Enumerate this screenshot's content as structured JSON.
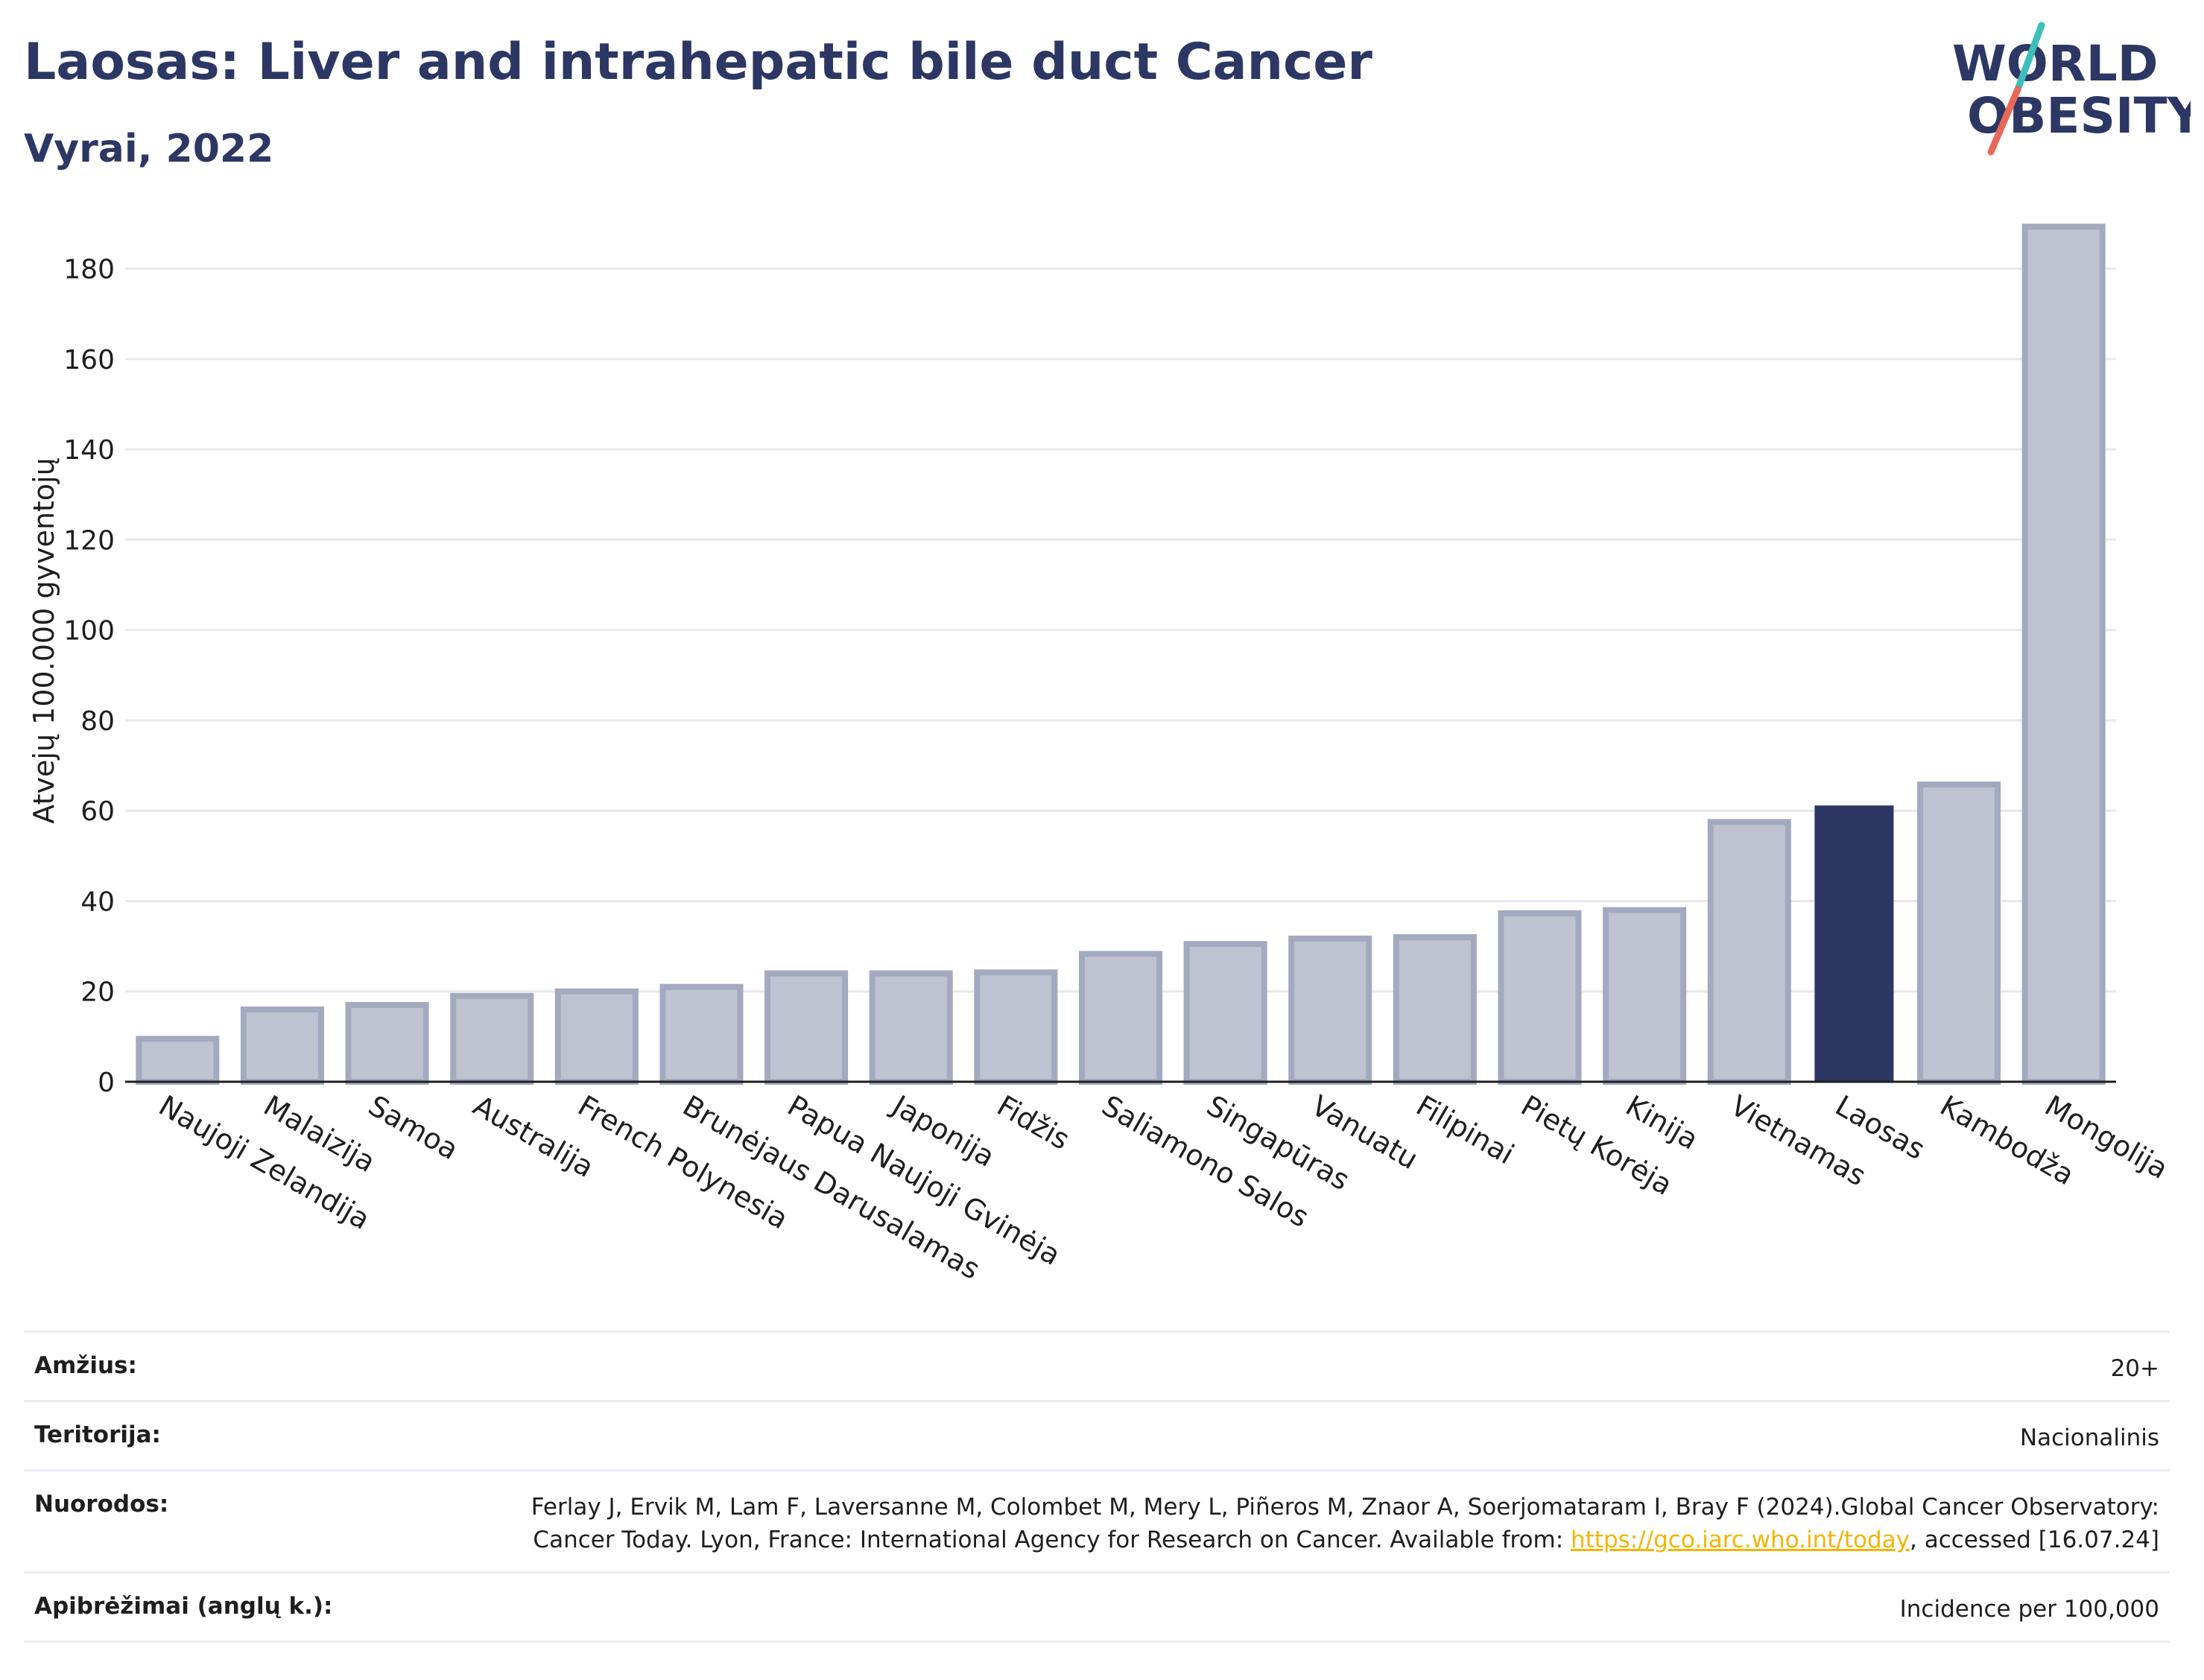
{
  "header": {
    "title": "Laosas: Liver and intrahepatic bile duct Cancer",
    "subtitle": "Vyrai, 2022"
  },
  "logo": {
    "line1": "WORLD",
    "line2": "OBESITY",
    "accent_teal": "#3bbfb8",
    "accent_red": "#e8685a",
    "text_color": "#2c3764"
  },
  "chart_data": {
    "type": "bar",
    "title": "",
    "xlabel": "",
    "ylabel": "Atvejų 100.000 gyventojų",
    "ylim": [
      0,
      190
    ],
    "yticks": [
      0,
      20,
      40,
      60,
      80,
      100,
      120,
      140,
      160,
      180
    ],
    "grid": true,
    "categories": [
      "Naujoji Zelandija",
      "Malaizija",
      "Samoa",
      "Australija",
      "French Polynesia",
      "Brunėjaus Darusalamas",
      "Papua Naujoji Gvinėja",
      "Japonija",
      "Fidžis",
      "Saliamono Salos",
      "Singapūras",
      "Vanuatu",
      "Filipinai",
      "Pietų Korėja",
      "Kinija",
      "Vietnamas",
      "Laosas",
      "Kambodža",
      "Mongolija"
    ],
    "values": [
      9.5,
      16,
      17,
      19,
      20,
      21,
      24,
      24,
      24.2,
      28.3,
      30.5,
      31.7,
      32,
      37.3,
      38,
      57.5,
      61,
      65.8,
      189.3
    ],
    "highlight": "Laosas",
    "colors": {
      "bar": "#bfc3d1",
      "bar_border": "#a3a9bf",
      "highlight": "#2c3764",
      "grid": "#e6e8ee",
      "axis": "#1e1e1e"
    }
  },
  "info": {
    "rows": [
      {
        "label": "Amžius:",
        "value": "20+"
      },
      {
        "label": "Teritorija:",
        "value": "Nacionalinis"
      },
      {
        "label": "Nuorodos:",
        "value_part1": "Ferlay J, Ervik M, Lam F, Laversanne M, Colombet M, Mery L, Piñeros M, Znaor A, Soerjomataram I, Bray F (2024).Global Cancer Observatory: Cancer Today. Lyon, France: International Agency for Research on Cancer. Available from: ",
        "link": "https://gco.iarc.who.int/today",
        "value_part2": ", accessed [16.07.24]"
      },
      {
        "label": "Apibrėžimai (anglų k.):",
        "value": "Incidence per 100,000"
      }
    ]
  }
}
